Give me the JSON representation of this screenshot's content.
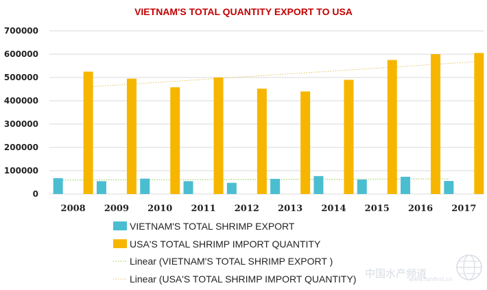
{
  "chart_data": {
    "type": "bar",
    "title": "VIETNAM'S TOTAL QUANTITY EXPORT TO USA",
    "xlabel": "",
    "ylabel": "",
    "ylim": [
      0,
      700000
    ],
    "yticks": [
      "0",
      "100000",
      "200000",
      "300000",
      "400000",
      "500000",
      "600000",
      "700000"
    ],
    "grid": true,
    "legend_position": "bottom",
    "categories": [
      "2008",
      "2009",
      "2010",
      "2011",
      "2012",
      "2013",
      "2014",
      "2015",
      "2016",
      "2017"
    ],
    "series": [
      {
        "name": "VIETNAM'S TOTAL SHRIMP EXPORT",
        "color": "#4bbdd0",
        "values": [
          68000,
          55000,
          66000,
          55000,
          48000,
          65000,
          77000,
          62000,
          74000,
          56000
        ]
      },
      {
        "name": "USA'S TOTAL SHRIMP IMPORT QUANTITY",
        "color": "#f6b600",
        "values": [
          525000,
          495000,
          458000,
          500000,
          452000,
          440000,
          490000,
          575000,
          600000,
          605000
        ]
      }
    ],
    "trendlines": [
      {
        "name": "Linear (VIETNAM'S TOTAL SHRIMP EXPORT )",
        "type": "linear",
        "color": "#4bbdd0"
      },
      {
        "name": "Linear (USA'S TOTAL SHRIMP IMPORT QUANTITY)",
        "type": "linear",
        "color": "#f6b600"
      }
    ]
  },
  "watermark": {
    "text": "中国水产频道",
    "subtext": "www.fishfirst.cn",
    "icon": "globe-icon"
  }
}
